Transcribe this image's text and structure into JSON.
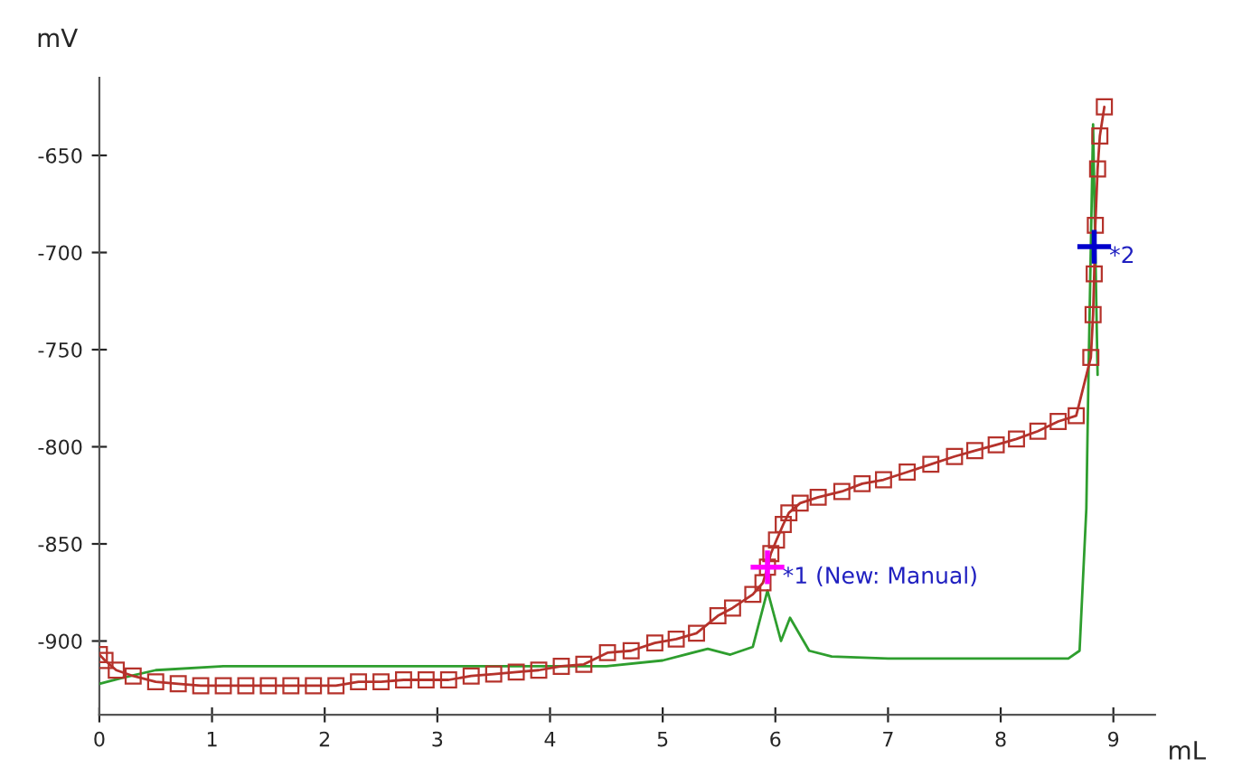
{
  "chart_data": {
    "type": "line",
    "xlabel": "mL",
    "ylabel": "mV",
    "xlim": [
      0,
      9.37
    ],
    "ylim": [
      -938,
      -610
    ],
    "xticks": [
      0,
      1,
      2,
      3,
      4,
      5,
      6,
      7,
      8,
      9
    ],
    "yticks": [
      -900,
      -850,
      -800,
      -750,
      -700,
      -650
    ],
    "grid": false,
    "legend": false,
    "series": [
      {
        "color": "#2e9e2e",
        "marker": "none",
        "x": [
          0,
          0.2,
          0.5,
          1.1,
          2.0,
          3.0,
          4.0,
          4.5,
          5.0,
          5.4,
          5.6,
          5.8,
          5.93,
          6.05,
          6.13,
          6.3,
          6.5,
          7.0,
          8.0,
          8.6,
          8.7,
          8.76,
          8.78,
          8.82,
          8.86
        ],
        "values": [
          -922,
          -919,
          -915,
          -913,
          -913,
          -913,
          -913,
          -913,
          -910,
          -904,
          -907,
          -903,
          -874,
          -900,
          -888,
          -905,
          -908,
          -909,
          -909,
          -909,
          -905,
          -832,
          -760,
          -634,
          -763
        ]
      },
      {
        "color": "#b5322b",
        "marker": "square",
        "x": [
          0,
          0.05,
          0.15,
          0.3,
          0.5,
          0.7,
          0.9,
          1.1,
          1.3,
          1.5,
          1.7,
          1.9,
          2.1,
          2.3,
          2.5,
          2.7,
          2.9,
          3.1,
          3.3,
          3.5,
          3.7,
          3.9,
          4.1,
          4.3,
          4.51,
          4.72,
          4.93,
          5.12,
          5.3,
          5.49,
          5.62,
          5.8,
          5.89,
          5.93,
          5.96,
          6.01,
          6.07,
          6.12,
          6.22,
          6.38,
          6.59,
          6.77,
          6.96,
          7.17,
          7.38,
          7.59,
          7.77,
          7.96,
          8.14,
          8.33,
          8.51,
          8.67,
          8.8,
          8.82,
          8.83,
          8.84,
          8.86,
          8.88,
          8.92
        ],
        "values": [
          -907,
          -910,
          -915,
          -918,
          -921,
          -922,
          -923,
          -923,
          -923,
          -923,
          -923,
          -923,
          -923,
          -921,
          -921,
          -920,
          -920,
          -920,
          -918,
          -917,
          -916,
          -915,
          -913,
          -912,
          -906,
          -905,
          -901,
          -899,
          -896,
          -887,
          -883,
          -876,
          -870,
          -862,
          -855,
          -848,
          -840,
          -834,
          -829,
          -826,
          -823,
          -819,
          -817,
          -813,
          -809,
          -805,
          -802,
          -799,
          -796,
          -792,
          -787,
          -784,
          -754,
          -732,
          -711,
          -686,
          -657,
          -640,
          -625
        ]
      },
      {
        "type": "scatter",
        "color": "#ff00ff",
        "marker": "cross",
        "x": [
          5.93
        ],
        "values": [
          -862
        ]
      },
      {
        "type": "scatter",
        "color": "#0000cc",
        "marker": "cross",
        "x": [
          8.83
        ],
        "values": [
          -697
        ]
      }
    ],
    "annotations": [
      {
        "text": "*1 (New: Manual)",
        "x": 5.93,
        "y": -862
      },
      {
        "text": "*2",
        "x": 8.83,
        "y": -697
      }
    ]
  }
}
